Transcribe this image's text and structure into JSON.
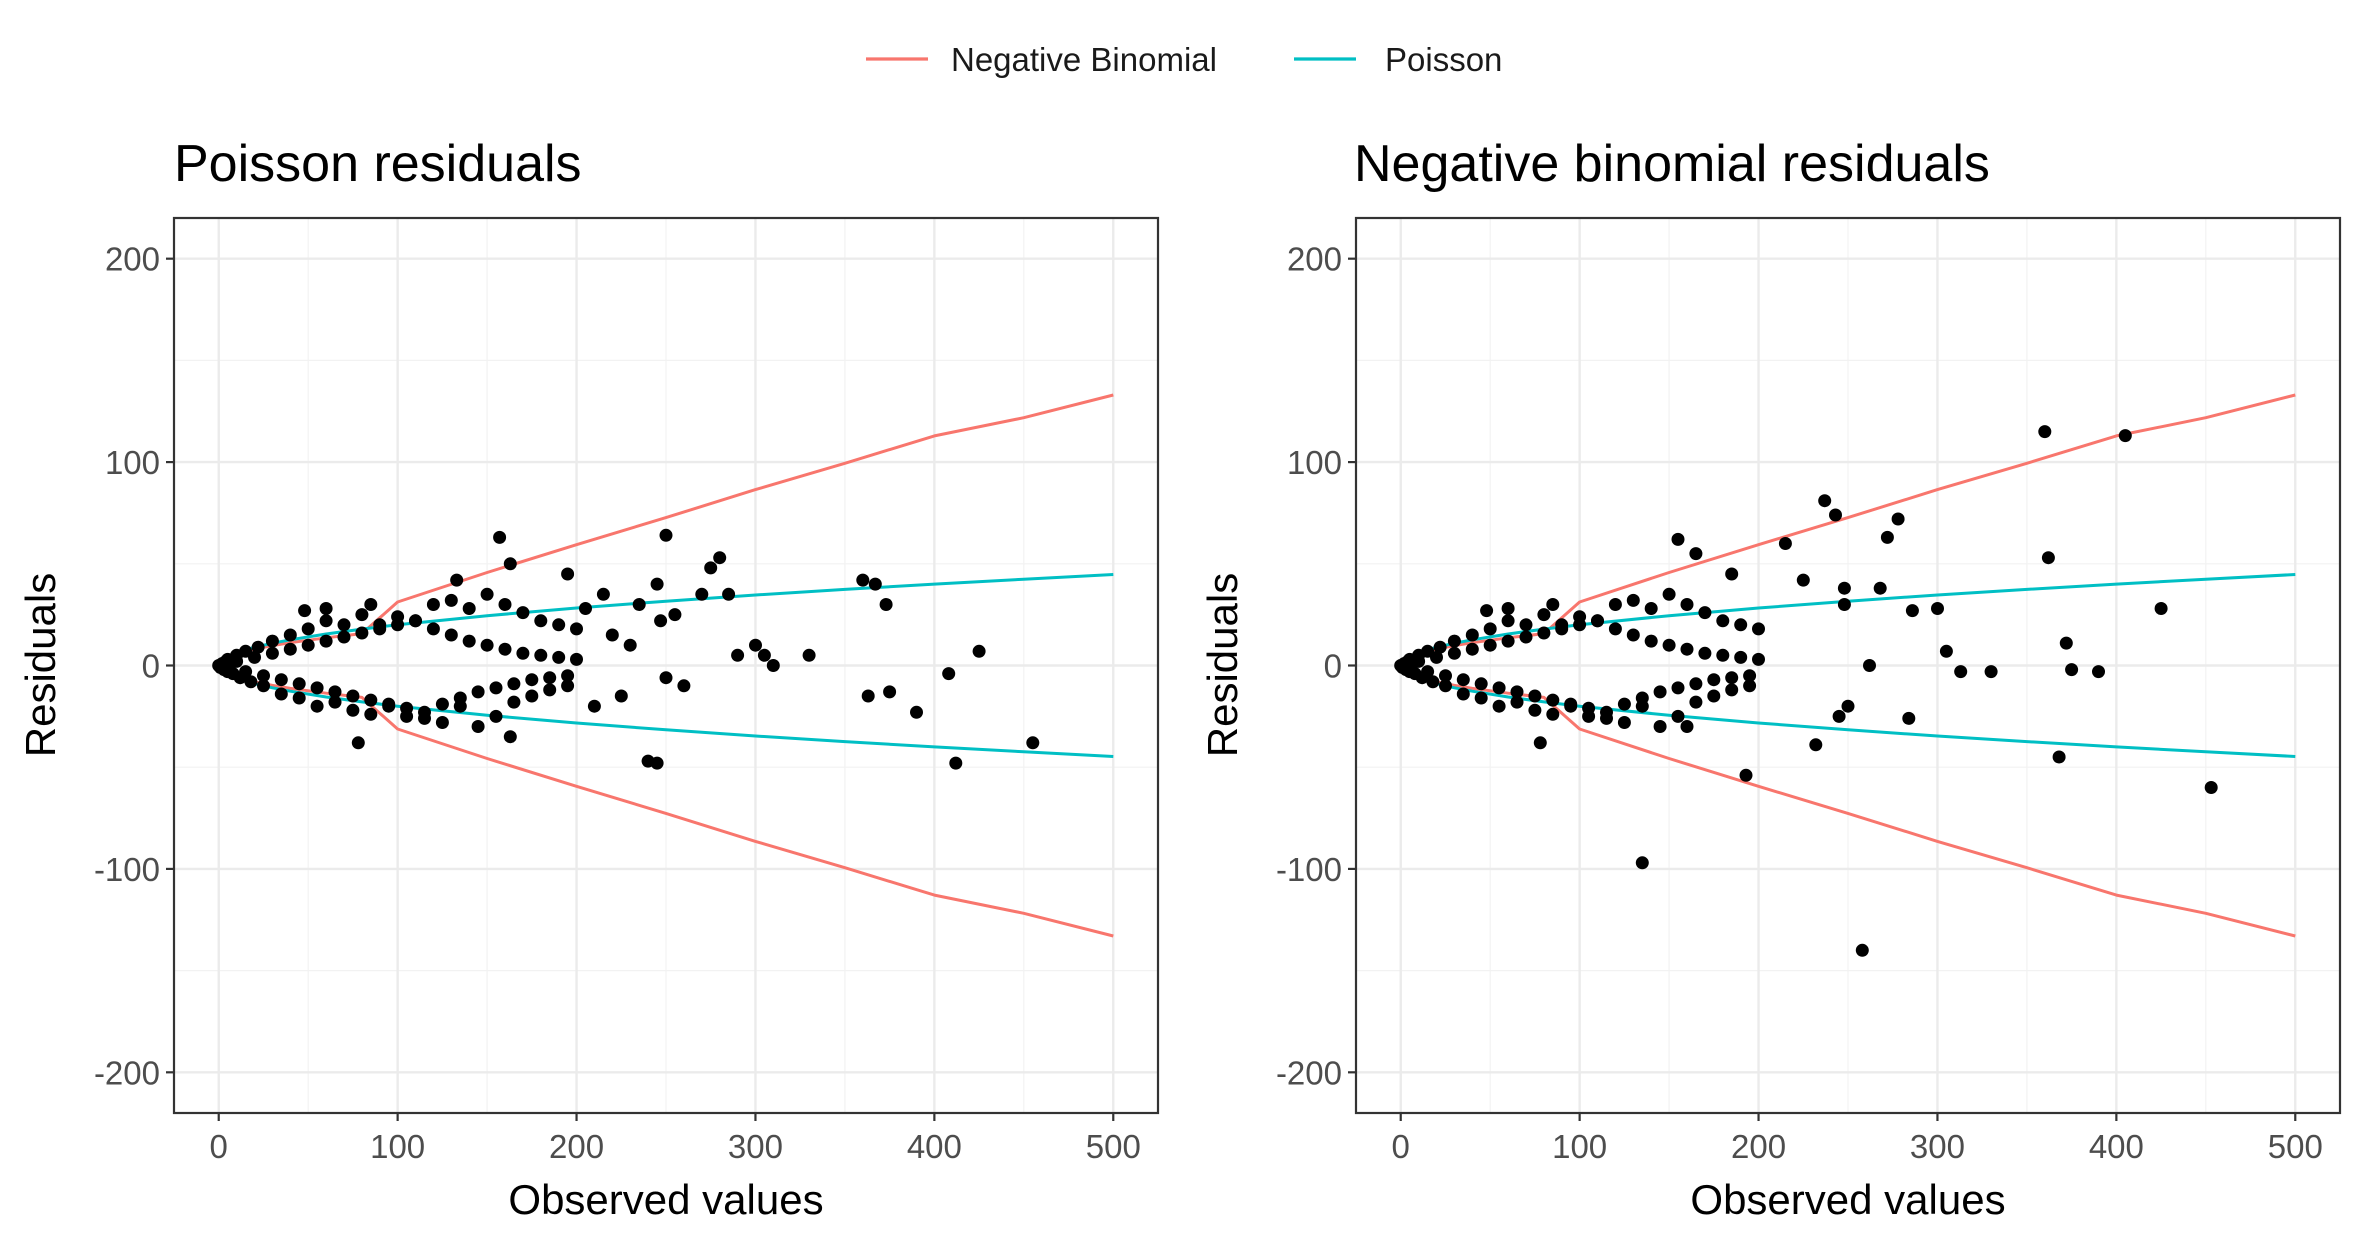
{
  "legend": {
    "entries": [
      {
        "label": "Negative Binomial",
        "color": "#F8766D"
      },
      {
        "label": "Poisson",
        "color": "#00BFC4"
      }
    ]
  },
  "chart_data": [
    {
      "type": "scatter",
      "title": "Poisson residuals",
      "xlabel": "Observed values",
      "ylabel": "Residuals",
      "xlim": [
        -25,
        525
      ],
      "ylim": [
        -220,
        220
      ],
      "x_ticks": [
        0,
        100,
        200,
        300,
        400,
        500
      ],
      "x_tick_labels": [
        "0",
        "100",
        "200",
        "300",
        "400",
        "500"
      ],
      "y_ticks": [
        -200,
        -100,
        0,
        100,
        200
      ],
      "y_tick_labels": [
        "-200",
        "-100",
        "0",
        "100",
        "200"
      ],
      "grid": true,
      "curves": [
        {
          "name": "Negative Binomial",
          "color": "#F8766D",
          "x": [
            0,
            1,
            2,
            4,
            7,
            10,
            15,
            20,
            30,
            40,
            60,
            80,
            100,
            150,
            200,
            250,
            300,
            350,
            400,
            450,
            500
          ],
          "y_upper": [
            0,
            1.98,
            2.76,
            3.82,
            4.97,
            5.88,
            7.1,
            8.12,
            9.8,
            11.2,
            13.6,
            15.7,
            31.2,
            45.7,
            59.4,
            72.7,
            86.5,
            99.4,
            112.9,
            121.8,
            133
          ],
          "y_lower": [
            0,
            -1.98,
            -2.76,
            -3.82,
            -4.97,
            -5.88,
            -7.1,
            -8.12,
            -9.8,
            -11.2,
            -13.6,
            -15.7,
            -31.2,
            -45.7,
            -59.4,
            -72.7,
            -86.5,
            -99.4,
            -112.9,
            -121.8,
            -133
          ]
        },
        {
          "name": "Poisson",
          "color": "#00BFC4",
          "x": [
            0,
            1,
            2,
            4,
            7,
            10,
            15,
            20,
            30,
            40,
            60,
            80,
            100,
            150,
            200,
            250,
            300,
            350,
            400,
            450,
            500
          ],
          "y_upper": [
            0,
            2,
            2.83,
            4,
            5.29,
            6.32,
            7.75,
            8.94,
            10.95,
            12.65,
            15.49,
            17.89,
            20,
            24.49,
            28.28,
            31.62,
            34.64,
            37.42,
            40,
            42.43,
            44.72
          ],
          "y_lower": [
            0,
            -2,
            -2.83,
            -4,
            -5.29,
            -6.32,
            -7.75,
            -8.94,
            -10.95,
            -12.65,
            -15.49,
            -17.89,
            -20,
            -24.49,
            -28.28,
            -31.62,
            -34.64,
            -37.42,
            -40,
            -42.43,
            -44.72
          ]
        }
      ],
      "points": {
        "x": [
          0,
          1,
          2,
          3,
          4,
          5,
          5,
          6,
          8,
          10,
          12,
          15,
          18,
          22,
          25,
          30,
          35,
          40,
          45,
          50,
          55,
          60,
          65,
          70,
          75,
          80,
          85,
          90,
          95,
          100,
          105,
          110,
          115,
          120,
          125,
          130,
          135,
          140,
          145,
          150,
          155,
          160,
          165,
          170,
          175,
          180,
          185,
          190,
          195,
          200,
          10,
          15,
          20,
          25,
          30,
          35,
          40,
          45,
          50,
          55,
          60,
          65,
          70,
          75,
          80,
          85,
          90,
          95,
          100,
          105,
          110,
          115,
          120,
          125,
          130,
          135,
          140,
          145,
          150,
          155,
          160,
          165,
          170,
          175,
          180,
          185,
          190,
          195,
          200,
          48,
          60,
          85,
          157,
          163,
          195,
          78,
          133,
          163,
          205,
          210,
          215,
          220,
          225,
          230,
          235,
          240,
          245,
          250,
          255,
          260,
          270,
          275,
          280,
          285,
          290,
          300,
          305,
          310,
          330,
          360,
          363,
          367,
          373,
          375,
          390,
          408,
          412,
          425,
          455,
          245,
          247,
          250
        ],
        "y": [
          0,
          -1,
          1,
          -2,
          2,
          -3,
          3,
          0,
          -4,
          5,
          -6,
          7,
          -8,
          9,
          -10,
          12,
          -14,
          15,
          -16,
          18,
          -20,
          22,
          -18,
          20,
          -22,
          25,
          -24,
          20,
          -20,
          24,
          -25,
          22,
          -26,
          30,
          -28,
          32,
          -20,
          28,
          -30,
          35,
          -25,
          30,
          -18,
          26,
          -15,
          22,
          -12,
          20,
          -10,
          18,
          2,
          -3,
          4,
          -5,
          6,
          -7,
          8,
          -9,
          10,
          -11,
          12,
          -13,
          14,
          -15,
          16,
          -17,
          18,
          -19,
          20,
          -21,
          22,
          -23,
          18,
          -19,
          15,
          -16,
          12,
          -13,
          10,
          -11,
          8,
          -9,
          6,
          -7,
          5,
          -6,
          4,
          -5,
          3,
          27,
          28,
          30,
          63,
          50,
          45,
          -38,
          42,
          -35,
          28,
          -20,
          35,
          15,
          -15,
          10,
          30,
          -47,
          -48,
          64,
          25,
          -10,
          35,
          48,
          53,
          35,
          5,
          10,
          5,
          0,
          5,
          42,
          -15,
          40,
          30,
          -13,
          -23,
          -4,
          -48,
          7,
          -38,
          40,
          22,
          -6
        ]
      }
    },
    {
      "type": "scatter",
      "title": "Negative binomial residuals",
      "xlabel": "Observed values",
      "ylabel": "Residuals",
      "xlim": [
        -25,
        525
      ],
      "ylim": [
        -220,
        220
      ],
      "x_ticks": [
        0,
        100,
        200,
        300,
        400,
        500
      ],
      "x_tick_labels": [
        "0",
        "100",
        "200",
        "300",
        "400",
        "500"
      ],
      "y_ticks": [
        -200,
        -100,
        0,
        100,
        200
      ],
      "y_tick_labels": [
        "-200",
        "-100",
        "0",
        "100",
        "200"
      ],
      "grid": true,
      "curves": [
        {
          "name": "Negative Binomial",
          "color": "#F8766D",
          "x": [
            0,
            1,
            2,
            4,
            7,
            10,
            15,
            20,
            30,
            40,
            60,
            80,
            100,
            150,
            200,
            250,
            300,
            350,
            400,
            450,
            500
          ],
          "y_upper": [
            0,
            1.98,
            2.76,
            3.82,
            4.97,
            5.88,
            7.1,
            8.12,
            9.8,
            11.2,
            13.6,
            15.7,
            31.2,
            45.7,
            59.4,
            72.7,
            86.5,
            99.4,
            112.9,
            121.8,
            133
          ],
          "y_lower": [
            0,
            -1.98,
            -2.76,
            -3.82,
            -4.97,
            -5.88,
            -7.1,
            -8.12,
            -9.8,
            -11.2,
            -13.6,
            -15.7,
            -31.2,
            -45.7,
            -59.4,
            -72.7,
            -86.5,
            -99.4,
            -112.9,
            -121.8,
            -133
          ]
        },
        {
          "name": "Poisson",
          "color": "#00BFC4",
          "x": [
            0,
            1,
            2,
            4,
            7,
            10,
            15,
            20,
            30,
            40,
            60,
            80,
            100,
            150,
            200,
            250,
            300,
            350,
            400,
            450,
            500
          ],
          "y_upper": [
            0,
            2,
            2.83,
            4,
            5.29,
            6.32,
            7.75,
            8.94,
            10.95,
            12.65,
            15.49,
            17.89,
            20,
            24.49,
            28.28,
            31.62,
            34.64,
            37.42,
            40,
            42.43,
            44.72
          ],
          "y_lower": [
            0,
            -2,
            -2.83,
            -4,
            -5.29,
            -6.32,
            -7.75,
            -8.94,
            -10.95,
            -12.65,
            -15.49,
            -17.89,
            -20,
            -24.49,
            -28.28,
            -31.62,
            -34.64,
            -37.42,
            -40,
            -42.43,
            -44.72
          ]
        }
      ],
      "points": {
        "x": [
          0,
          1,
          2,
          3,
          4,
          5,
          5,
          6,
          8,
          10,
          12,
          15,
          18,
          22,
          25,
          30,
          35,
          40,
          45,
          50,
          55,
          60,
          65,
          70,
          75,
          80,
          85,
          90,
          95,
          100,
          105,
          110,
          115,
          120,
          125,
          130,
          135,
          140,
          145,
          150,
          155,
          160,
          165,
          170,
          175,
          180,
          185,
          190,
          195,
          200,
          10,
          15,
          20,
          25,
          30,
          35,
          40,
          45,
          50,
          55,
          60,
          65,
          70,
          75,
          80,
          85,
          90,
          95,
          100,
          105,
          110,
          115,
          120,
          125,
          130,
          135,
          140,
          145,
          150,
          155,
          160,
          165,
          170,
          175,
          180,
          185,
          190,
          195,
          200,
          48,
          60,
          85,
          155,
          165,
          185,
          78,
          135,
          160,
          193,
          215,
          225,
          232,
          237,
          243,
          248,
          250,
          262,
          268,
          272,
          278,
          284,
          286,
          300,
          305,
          313,
          330,
          360,
          362,
          368,
          372,
          375,
          390,
          405,
          425,
          453,
          245,
          258,
          248
        ],
        "y": [
          0,
          -1,
          1,
          -2,
          2,
          -3,
          3,
          0,
          -4,
          5,
          -6,
          7,
          -8,
          9,
          -10,
          12,
          -14,
          15,
          -16,
          18,
          -20,
          22,
          -18,
          20,
          -22,
          25,
          -24,
          20,
          -20,
          24,
          -25,
          22,
          -26,
          30,
          -28,
          32,
          -20,
          28,
          -30,
          35,
          -25,
          30,
          -18,
          26,
          -15,
          22,
          -12,
          20,
          -10,
          18,
          2,
          -3,
          4,
          -5,
          6,
          -7,
          8,
          -9,
          10,
          -11,
          12,
          -13,
          14,
          -15,
          16,
          -17,
          18,
          -19,
          20,
          -21,
          22,
          -23,
          18,
          -19,
          15,
          -16,
          12,
          -13,
          10,
          -11,
          8,
          -9,
          6,
          -7,
          5,
          -6,
          4,
          -5,
          3,
          27,
          28,
          30,
          62,
          55,
          45,
          -38,
          -97,
          -30,
          -54,
          60,
          42,
          -39,
          81,
          74,
          30,
          -20,
          0,
          38,
          63,
          72,
          -26,
          27,
          28,
          7,
          -3,
          -3,
          115,
          53,
          -45,
          11,
          -2,
          -3,
          113,
          28,
          -60,
          -25,
          -140,
          38
        ]
      }
    }
  ]
}
